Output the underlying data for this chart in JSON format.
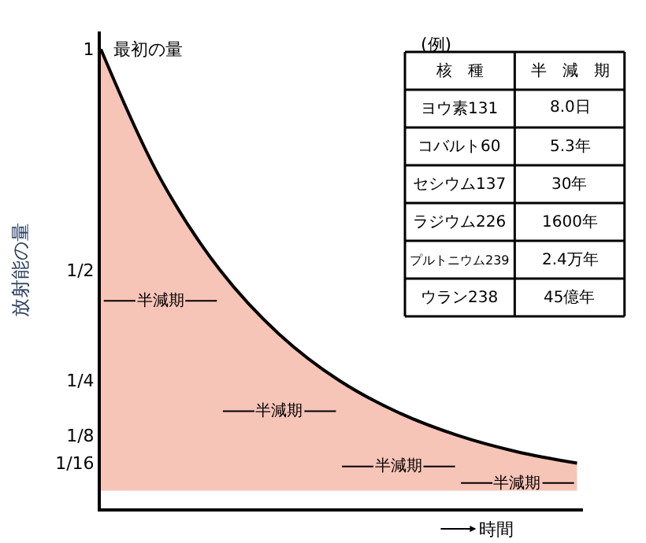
{
  "chart_data": {
    "type": "area",
    "categories": [
      null,
      null,
      null,
      null,
      null,
      null,
      null,
      null,
      null
    ],
    "series": [
      {
        "color": "#f7c4b8",
        "values": [
          1,
          0.707,
          0.5,
          0.354,
          0.25,
          0.177,
          0.125,
          0.088,
          0.0625
        ]
      }
    ],
    "ylim": [
      -0.04,
      1.04
    ],
    "yticks": [
      1,
      {
        "value": 0.5,
        "label": "1/2"
      },
      {
        "value": 0.25,
        "label": "1/4"
      },
      {
        "value": 0.125,
        "label": "1/8"
      },
      {
        "value": 0.0625,
        "label": "1/16"
      }
    ],
    "ylabel": "放射能の量",
    "xlabel": "時間",
    "tick_labels": "y",
    "legend": false,
    "annotations": [
      "最初の量",
      "半減期",
      "半減期",
      "半減期",
      "半減期",
      "(例)",
      "核　種",
      "半　減　期",
      "ヨウ素131",
      "8.0日",
      "コバルト60",
      "5.3年",
      "セシウム137",
      "30年",
      "ラジウム226",
      "1600年",
      "プルトニウム239",
      "2.4万年",
      "ウラン238",
      "45億年"
    ]
  }
}
